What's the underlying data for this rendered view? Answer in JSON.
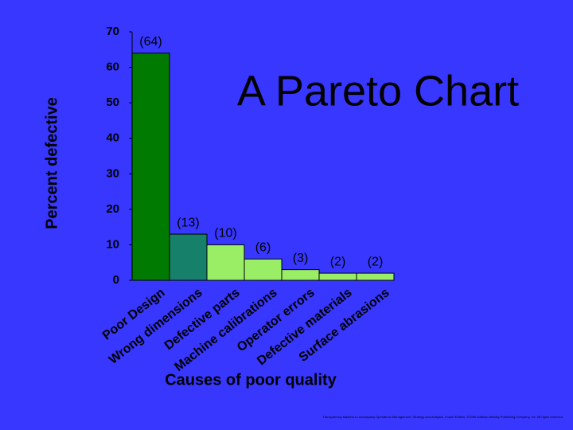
{
  "chart_data": {
    "type": "bar",
    "title": "A Pareto Chart",
    "x_label": "Causes of poor quality",
    "y_label": "Percent defective",
    "categories": [
      "Poor Design",
      "Wrong dimensions",
      "Defective parts",
      "Machine calibrations",
      "Operator errors",
      "Defective materials",
      "Surface abrasions"
    ],
    "values": [
      64,
      13,
      10,
      6,
      3,
      2,
      2
    ],
    "value_labels": [
      "(64)",
      "(13)",
      "(10)",
      "(6)",
      "(3)",
      "(2)",
      "(2)"
    ],
    "colors": [
      "#007a00",
      "#17806a",
      "#99ee66",
      "#99ee66",
      "#99ee66",
      "#99ee66",
      "#99ee66"
    ],
    "ylim": [
      0,
      70
    ],
    "yticks": [
      0,
      10,
      20,
      30,
      40,
      50,
      60,
      70
    ],
    "footnote": "Transparency Masters to accompany Operations Management: Strategy and Analysis, Fourth Edition, ©1996 Addison-Wesley Publishing Company, Inc. All rights reserved."
  }
}
